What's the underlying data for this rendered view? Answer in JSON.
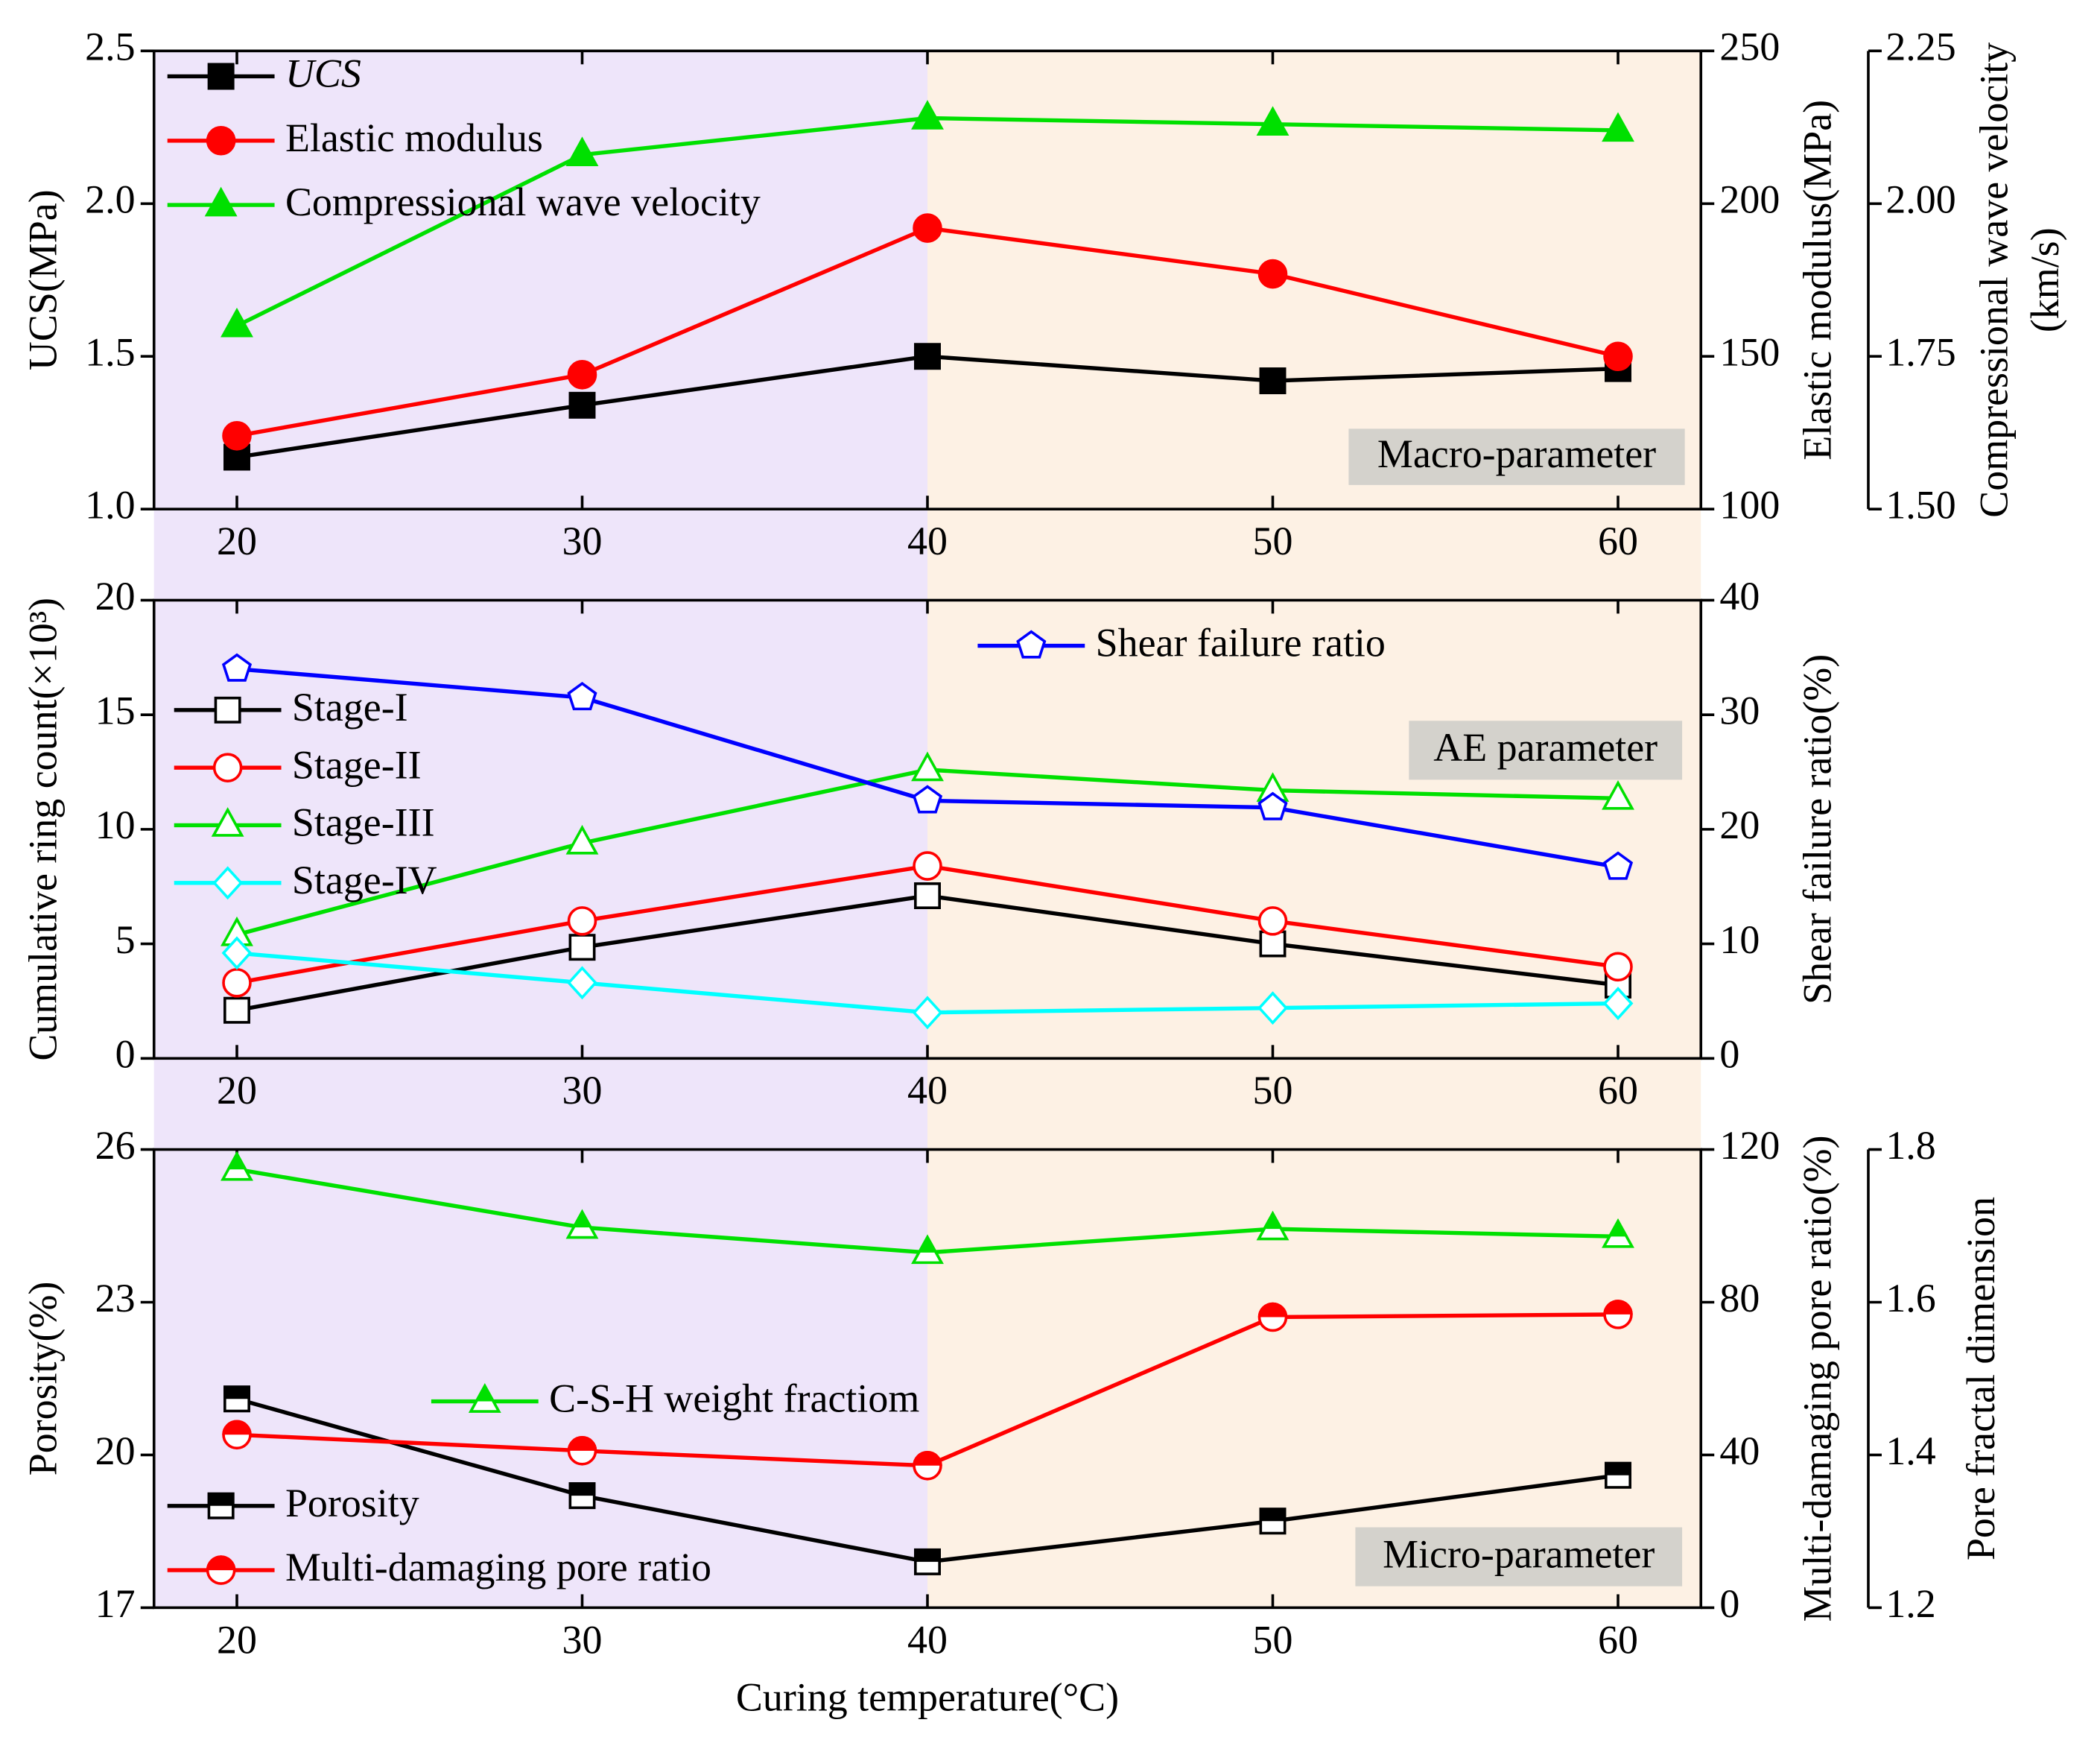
{
  "chart_data": [
    {
      "type": "line",
      "x": [
        20,
        30,
        40,
        50,
        60
      ],
      "xlim": [
        17.6,
        62.4
      ],
      "xticks": [
        20,
        30,
        40,
        50,
        60
      ],
      "ylabel": "UCS(MPa)",
      "ylim": [
        1,
        2.5
      ],
      "yticks": [
        {
          "value": 1,
          "label": "1.0"
        },
        {
          "value": 1.5,
          "label": "1.5"
        },
        {
          "value": 2,
          "label": "2.0"
        },
        {
          "value": 2.5,
          "label": "2.5"
        }
      ],
      "y2label": "Elastic modulus(MPa)",
      "y2lim": [
        100,
        250
      ],
      "y2ticks": [
        100,
        150,
        200,
        250
      ],
      "y3label": [
        "Compressional wave velocity",
        "(km/s)"
      ],
      "y3lim": [
        1.5,
        2.25
      ],
      "y3ticks": [
        {
          "value": 1.5,
          "label": "1.50"
        },
        {
          "value": 1.75,
          "label": "1.75"
        },
        {
          "value": 2,
          "label": "2.00"
        },
        {
          "value": 2.25,
          "label": "2.25"
        }
      ],
      "annotation": "Macro-parameter",
      "background_split": 40,
      "background_colors": [
        "#eee5fa",
        "#fdf1e4"
      ],
      "series": [
        {
          "name": "UCS",
          "color": "#000000",
          "marker": "square",
          "fill": "filled",
          "values": [
            1.17,
            1.34,
            1.5,
            1.42,
            1.46
          ]
        },
        {
          "name": "Elastic modulus",
          "color": "#ff0000",
          "marker": "circle",
          "fill": "filled",
          "axis": "y2",
          "values": [
            124,
            144,
            192,
            177,
            150
          ]
        },
        {
          "name": "Compressional wave velocity",
          "color": "#00e000",
          "marker": "triangle",
          "fill": "filled",
          "axis": "y3",
          "values": [
            1.8,
            2.08,
            2.14,
            2.13,
            2.12
          ]
        }
      ]
    },
    {
      "type": "line",
      "x": [
        20,
        30,
        40,
        50,
        60
      ],
      "xlim": [
        17.6,
        62.4
      ],
      "xticks": [
        20,
        30,
        40,
        50,
        60
      ],
      "ylabel": "Cumulative ring count(×10³)",
      "ylim": [
        0,
        20
      ],
      "yticks": [
        0,
        5,
        10,
        15,
        20
      ],
      "y2label": "Shear failure ratio(%)",
      "y2lim": [
        0,
        40
      ],
      "y2ticks": [
        0,
        10,
        20,
        30,
        40
      ],
      "annotation": "AE parameter",
      "background_split": 40,
      "background_colors": [
        "#eee5fa",
        "#fdf1e4"
      ],
      "series": [
        {
          "name": "Stage-I",
          "color": "#000000",
          "marker": "square",
          "fill": "open",
          "values": [
            2.1,
            4.85,
            7.1,
            5.0,
            3.2
          ]
        },
        {
          "name": "Stage-II",
          "color": "#ff0000",
          "marker": "circle",
          "fill": "open",
          "values": [
            3.3,
            6.0,
            8.4,
            6.0,
            4.0
          ]
        },
        {
          "name": "Stage-III",
          "color": "#00e000",
          "marker": "triangle",
          "fill": "open",
          "values": [
            5.4,
            9.4,
            12.6,
            11.7,
            11.35
          ]
        },
        {
          "name": "Stage-IV",
          "color": "#00ffff",
          "marker": "diamond",
          "fill": "open",
          "values": [
            4.6,
            3.3,
            2.0,
            2.2,
            2.4
          ]
        },
        {
          "name": "Shear failure ratio",
          "color": "#0000ff",
          "marker": "pentagon",
          "fill": "open",
          "axis": "y2",
          "values": [
            34.0,
            31.5,
            22.5,
            21.9,
            16.7
          ]
        }
      ]
    },
    {
      "type": "line",
      "x": [
        20,
        30,
        40,
        50,
        60
      ],
      "xlim": [
        17.6,
        62.4
      ],
      "xticks": [
        20,
        30,
        40,
        50,
        60
      ],
      "xlabel": "Curing temperature(°C)",
      "ylabel": "Porosity(%)",
      "ylim": [
        17,
        26
      ],
      "yticks": [
        17,
        20,
        23,
        26
      ],
      "y2label": "Multi-damaging pore ratio(%)",
      "y2lim": [
        0,
        120
      ],
      "y2ticks": [
        0,
        40,
        80,
        120
      ],
      "y3label": [
        "Pore fractal dimension"
      ],
      "y3lim": [
        1.2,
        1.8
      ],
      "y3ticks": [
        1.2,
        1.4,
        1.6,
        1.8
      ],
      "annotation": "Micro-parameter",
      "background_split": 40,
      "background_colors": [
        "#eee5fa",
        "#fdf1e4"
      ],
      "series": [
        {
          "name": "Porosity",
          "color": "#000000",
          "marker": "square",
          "fill": "half",
          "values": [
            21.1,
            19.2,
            17.9,
            18.7,
            19.6
          ]
        },
        {
          "name": "Multi-damaging pore ratio",
          "color": "#ff0000",
          "marker": "circle",
          "fill": "half",
          "axis": "y2",
          "values": [
            45.3,
            41.1,
            37.2,
            76.1,
            76.8
          ]
        },
        {
          "name": "C-S-H weight fractiom",
          "color": "#00e000",
          "marker": "triangle",
          "fill": "half",
          "axis": "y3",
          "values": [
            1.774,
            1.698,
            1.665,
            1.696,
            1.686
          ]
        }
      ]
    }
  ]
}
